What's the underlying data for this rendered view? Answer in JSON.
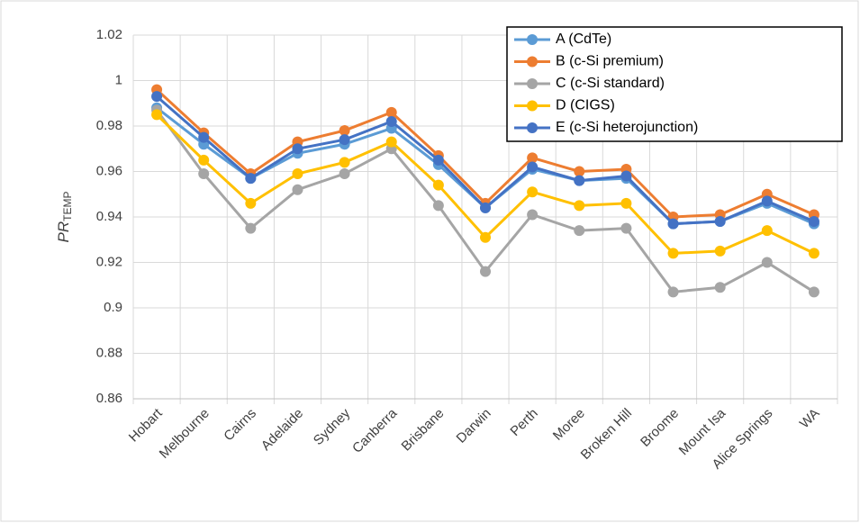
{
  "chart_data": {
    "type": "line",
    "y_label": "PR",
    "y_label_sub": "TEMP",
    "categories": [
      "Hobart",
      "Melbourne",
      "Cairns",
      "Adelaide",
      "Sydney",
      "Canberra",
      "Brisbane",
      "Darwin",
      "Perth",
      "Moree",
      "Broken Hill",
      "Broome",
      "Mount Isa",
      "Alice Springs",
      "WA"
    ],
    "series": [
      {
        "name": "A (CdTe)",
        "color": "#5b9bd5",
        "values": [
          0.988,
          0.972,
          0.957,
          0.968,
          0.972,
          0.979,
          0.963,
          0.944,
          0.961,
          0.956,
          0.957,
          0.937,
          0.938,
          0.946,
          0.937
        ]
      },
      {
        "name": "B (c-Si premium)",
        "color": "#ed7d31",
        "values": [
          0.996,
          0.977,
          0.959,
          0.973,
          0.978,
          0.986,
          0.967,
          0.946,
          0.966,
          0.96,
          0.961,
          0.94,
          0.941,
          0.95,
          0.941
        ]
      },
      {
        "name": "C (c-Si standard)",
        "color": "#a5a5a5",
        "values": [
          0.987,
          0.959,
          0.935,
          0.952,
          0.959,
          0.97,
          0.945,
          0.916,
          0.941,
          0.934,
          0.935,
          0.907,
          0.909,
          0.92,
          0.907
        ]
      },
      {
        "name": "D (CIGS)",
        "color": "#ffc000",
        "values": [
          0.985,
          0.965,
          0.946,
          0.959,
          0.964,
          0.973,
          0.954,
          0.931,
          0.951,
          0.945,
          0.946,
          0.924,
          0.925,
          0.934,
          0.924
        ]
      },
      {
        "name": "E (c-Si heterojunction)",
        "color": "#4472c4",
        "values": [
          0.993,
          0.975,
          0.957,
          0.97,
          0.974,
          0.982,
          0.965,
          0.944,
          0.962,
          0.956,
          0.958,
          0.937,
          0.938,
          0.947,
          0.938
        ]
      }
    ],
    "ylim": [
      0.86,
      1.02
    ],
    "yticks": [
      0.86,
      0.88,
      0.9,
      0.92,
      0.94,
      0.96,
      0.98,
      1,
      1.02
    ],
    "grid": true,
    "legend": "top-right"
  }
}
